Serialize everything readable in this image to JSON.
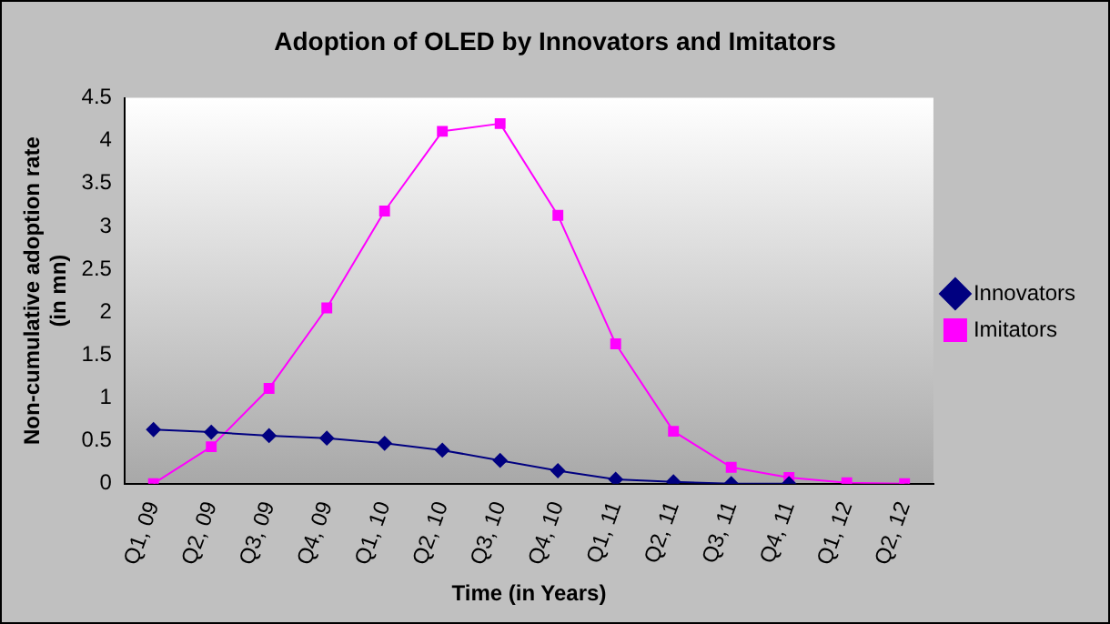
{
  "chart_data": {
    "type": "line",
    "title": "Adoption of OLED by Innovators and Imitators",
    "xlabel": "Time (in Years)",
    "ylabel": "Non-cumulative adoption rate (in mn)",
    "categories": [
      "Q1, 09",
      "Q2, 09",
      "Q3, 09",
      "Q4, 09",
      "Q1, 10",
      "Q2, 10",
      "Q3, 10",
      "Q4, 10",
      "Q1, 11",
      "Q2, 11",
      "Q3, 11",
      "Q4, 11",
      "Q1, 12",
      "Q2, 12"
    ],
    "series": [
      {
        "name": "Innovators",
        "color": "#000080",
        "marker": "diamond",
        "values": [
          0.63,
          0.6,
          0.56,
          0.53,
          0.47,
          0.39,
          0.27,
          0.15,
          0.05,
          0.02,
          0,
          0,
          null,
          null
        ]
      },
      {
        "name": "Imitators",
        "color": "#ff00ff",
        "marker": "square",
        "values": [
          0,
          0.43,
          1.11,
          2.05,
          3.18,
          4.11,
          4.2,
          3.13,
          1.63,
          0.61,
          0.19,
          0.07,
          0.01,
          0
        ]
      }
    ],
    "ylim": [
      0,
      4.5
    ],
    "yticks": [
      0,
      0.5,
      1,
      1.5,
      2,
      2.5,
      3,
      3.5,
      4,
      4.5
    ],
    "grid": false,
    "legend": "right"
  }
}
